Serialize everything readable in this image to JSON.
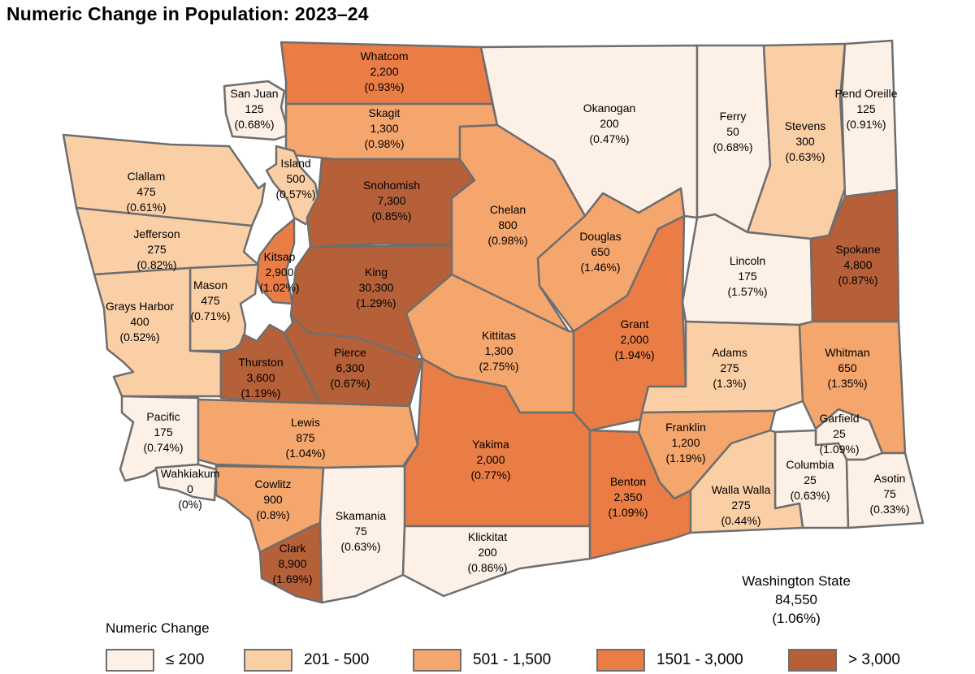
{
  "title": "Numeric Change in Population:  2023–24",
  "colors": {
    "le200": "#fdf0e6",
    "c201_500": "#fbcfa6",
    "c501_1500": "#f5a66d",
    "c1501_3000": "#ea7d45",
    "gt3000": "#b6603a"
  },
  "counties": [
    {
      "name": "Whatcom",
      "change": "2,200",
      "pct": "(0.93%)",
      "cls": "c1501_3000"
    },
    {
      "name": "San Juan",
      "change": "125",
      "pct": "(0.68%)",
      "cls": "le200"
    },
    {
      "name": "Skagit",
      "change": "1,300",
      "pct": "(0.98%)",
      "cls": "c501_1500"
    },
    {
      "name": "Okanogan",
      "change": "200",
      "pct": "(0.47%)",
      "cls": "le200"
    },
    {
      "name": "Ferry",
      "change": "50",
      "pct": "(0.68%)",
      "cls": "le200"
    },
    {
      "name": "Stevens",
      "change": "300",
      "pct": "(0.63%)",
      "cls": "c201_500"
    },
    {
      "name": "Pend Oreille",
      "change": "125",
      "pct": "(0.91%)",
      "cls": "le200"
    },
    {
      "name": "Clallam",
      "change": "475",
      "pct": "(0.61%)",
      "cls": "c201_500"
    },
    {
      "name": "Island",
      "change": "500",
      "pct": "(0.57%)",
      "cls": "c201_500"
    },
    {
      "name": "Snohomish",
      "change": "7,300",
      "pct": "(0.85%)",
      "cls": "gt3000"
    },
    {
      "name": "Chelan",
      "change": "800",
      "pct": "(0.98%)",
      "cls": "c501_1500"
    },
    {
      "name": "Douglas",
      "change": "650",
      "pct": "(1.46%)",
      "cls": "c501_1500"
    },
    {
      "name": "Lincoln",
      "change": "175",
      "pct": "(1.57%)",
      "cls": "le200"
    },
    {
      "name": "Spokane",
      "change": "4,800",
      "pct": "(0.87%)",
      "cls": "gt3000"
    },
    {
      "name": "Jefferson",
      "change": "275",
      "pct": "(0.82%)",
      "cls": "c201_500"
    },
    {
      "name": "Kitsap",
      "change": "2,900",
      "pct": "(1.02%)",
      "cls": "c1501_3000"
    },
    {
      "name": "Mason",
      "change": "475",
      "pct": "(0.71%)",
      "cls": "c201_500"
    },
    {
      "name": "King",
      "change": "30,300",
      "pct": "(1.29%)",
      "cls": "gt3000"
    },
    {
      "name": "Grays Harbor",
      "change": "400",
      "pct": "(0.52%)",
      "cls": "c201_500"
    },
    {
      "name": "Kittitas",
      "change": "1,300",
      "pct": "(2.75%)",
      "cls": "c501_1500"
    },
    {
      "name": "Grant",
      "change": "2,000",
      "pct": "(1.94%)",
      "cls": "c1501_3000"
    },
    {
      "name": "Adams",
      "change": "275",
      "pct": "(1.3%)",
      "cls": "c201_500"
    },
    {
      "name": "Whitman",
      "change": "650",
      "pct": "(1.35%)",
      "cls": "c501_1500"
    },
    {
      "name": "Thurston",
      "change": "3,600",
      "pct": "(1.19%)",
      "cls": "gt3000"
    },
    {
      "name": "Pierce",
      "change": "6,300",
      "pct": "(0.67%)",
      "cls": "gt3000"
    },
    {
      "name": "Pacific",
      "change": "175",
      "pct": "(0.74%)",
      "cls": "le200"
    },
    {
      "name": "Lewis",
      "change": "875",
      "pct": "(1.04%)",
      "cls": "c501_1500"
    },
    {
      "name": "Yakima",
      "change": "2,000",
      "pct": "(0.77%)",
      "cls": "c1501_3000"
    },
    {
      "name": "Franklin",
      "change": "1,200",
      "pct": "(1.19%)",
      "cls": "c501_1500"
    },
    {
      "name": "Garfield",
      "change": "25",
      "pct": "(1.09%)",
      "cls": "le200"
    },
    {
      "name": "Wahkiakum",
      "change": "0",
      "pct": "(0%)",
      "cls": "le200"
    },
    {
      "name": "Cowlitz",
      "change": "900",
      "pct": "(0.8%)",
      "cls": "c501_1500"
    },
    {
      "name": "Benton",
      "change": "2,350",
      "pct": "(1.09%)",
      "cls": "c1501_3000"
    },
    {
      "name": "Columbia",
      "change": "25",
      "pct": "(0.63%)",
      "cls": "le200"
    },
    {
      "name": "Walla Walla",
      "change": "275",
      "pct": "(0.44%)",
      "cls": "c201_500"
    },
    {
      "name": "Asotin",
      "change": "75",
      "pct": "(0.33%)",
      "cls": "le200"
    },
    {
      "name": "Skamania",
      "change": "75",
      "pct": "(0.63%)",
      "cls": "le200"
    },
    {
      "name": "Klickitat",
      "change": "200",
      "pct": "(0.86%)",
      "cls": "le200"
    },
    {
      "name": "Clark",
      "change": "8,900",
      "pct": "(1.69%)",
      "cls": "gt3000"
    }
  ],
  "state": {
    "name": "Washington State",
    "change": "84,550",
    "pct": "(1.06%)"
  },
  "legend": {
    "title": "Numeric Change",
    "items": [
      {
        "label": "≤ 200",
        "cls": "le200"
      },
      {
        "label": "201 - 500",
        "cls": "c201_500"
      },
      {
        "label": "501 - 1,500",
        "cls": "c501_1500"
      },
      {
        "label": "1501 - 3,000",
        "cls": "c1501_3000"
      },
      {
        "label": "> 3,000",
        "cls": "gt3000"
      }
    ]
  }
}
